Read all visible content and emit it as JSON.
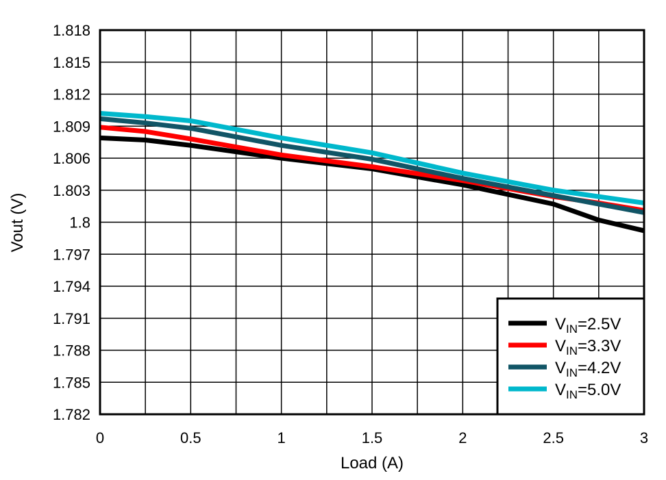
{
  "chart_data": {
    "type": "line",
    "title": "",
    "xlabel": "Load (A)",
    "ylabel": "Vout (V)",
    "xlim": [
      0,
      3
    ],
    "ylim": [
      1.782,
      1.818
    ],
    "xticks": [
      "0",
      "0.5",
      "1",
      "1.5",
      "2",
      "2.5",
      "3"
    ],
    "xtick_values": [
      0,
      0.5,
      1,
      1.5,
      2,
      2.5,
      3
    ],
    "yticks": [
      "1.818",
      "1.815",
      "1.812",
      "1.809",
      "1.806",
      "1.803",
      "1.8",
      "1.797",
      "1.794",
      "1.791",
      "1.788",
      "1.785",
      "1.782"
    ],
    "ytick_values": [
      1.818,
      1.815,
      1.812,
      1.809,
      1.806,
      1.803,
      1.8,
      1.797,
      1.794,
      1.791,
      1.788,
      1.785,
      1.782
    ],
    "grid": true,
    "legend_position": "bottom-right",
    "x": [
      0,
      0.25,
      0.5,
      1.0,
      1.5,
      2.0,
      2.5,
      2.75,
      3.0
    ],
    "series": [
      {
        "name": "VIN=2.5V",
        "sub": "IN",
        "prefix": "V",
        "suffix": "=2.5V",
        "color": "#000000",
        "values": [
          1.8079,
          1.8077,
          1.8072,
          1.806,
          1.805,
          1.8035,
          1.8017,
          1.8002,
          1.7992
        ]
      },
      {
        "name": "VIN=3.3V",
        "sub": "IN",
        "prefix": "V",
        "suffix": "=3.3V",
        "color": "#ff0000",
        "values": [
          1.8089,
          1.8085,
          1.8078,
          1.8063,
          1.8052,
          1.8039,
          1.8024,
          1.8018,
          1.8011
        ]
      },
      {
        "name": "VIN=4.2V",
        "sub": "IN",
        "prefix": "V",
        "suffix": "=4.2V",
        "color": "#115566",
        "values": [
          1.8097,
          1.8093,
          1.8088,
          1.8072,
          1.8059,
          1.8041,
          1.8025,
          1.8017,
          1.8009
        ]
      },
      {
        "name": "VIN=5.0V",
        "sub": "IN",
        "prefix": "V",
        "suffix": "=5.0V",
        "color": "#00b8cc",
        "values": [
          1.8102,
          1.8099,
          1.8095,
          1.8079,
          1.8065,
          1.8046,
          1.803,
          1.8024,
          1.8018
        ]
      }
    ]
  }
}
